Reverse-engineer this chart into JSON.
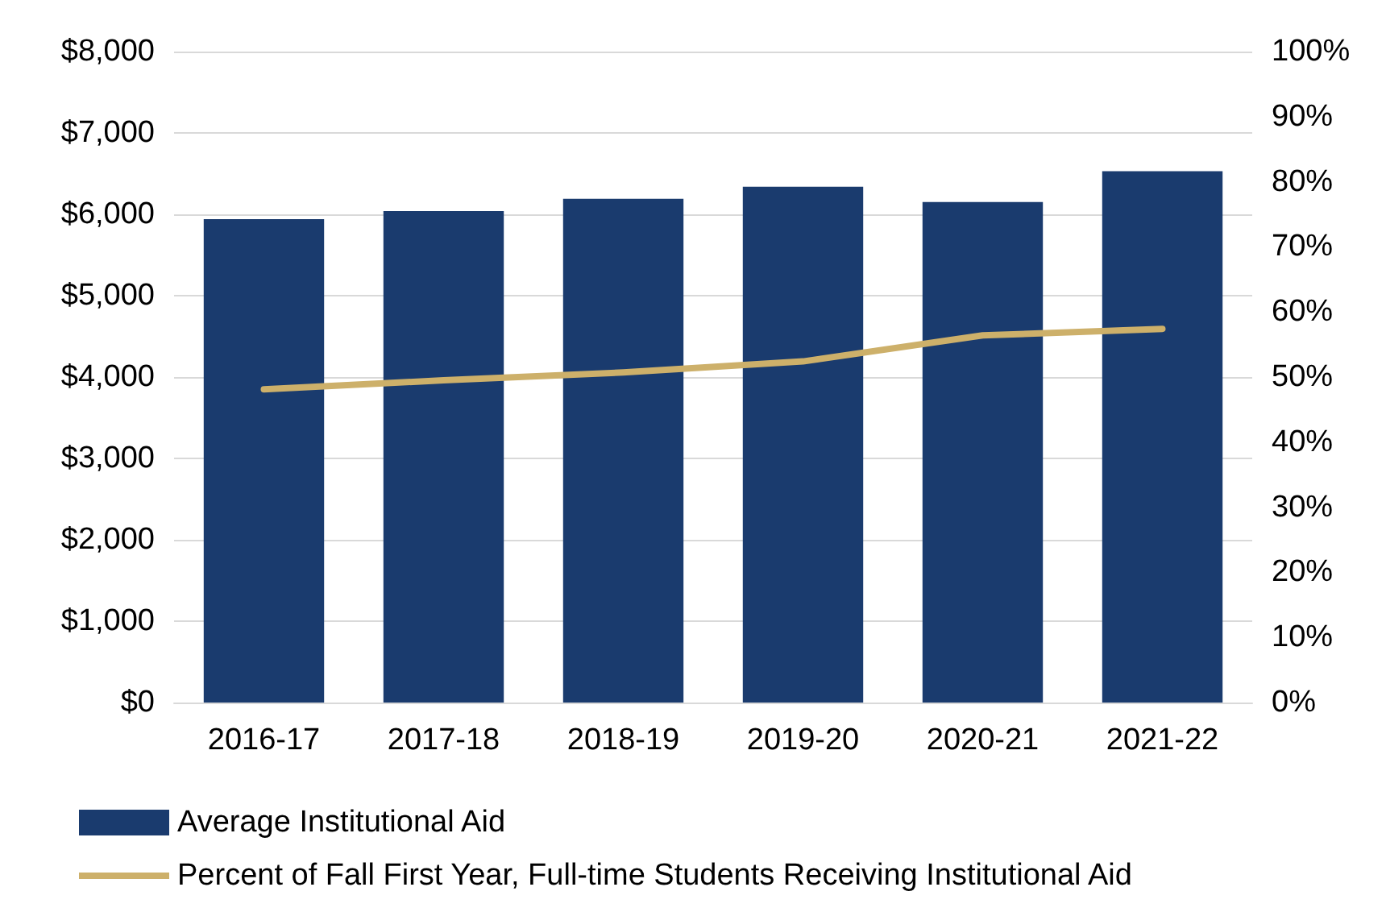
{
  "chart_data": {
    "type": "bar",
    "categories": [
      "2016-17",
      "2017-18",
      "2018-19",
      "2019-20",
      "2020-21",
      "2021-22"
    ],
    "series": [
      {
        "name": "Average Institutional Aid",
        "color": "#1a3b6e",
        "values": [
          5940,
          6040,
          6190,
          6340,
          6150,
          6530
        ]
      },
      {
        "name": "Percent of Fall First Year, Full-time Students Receiving Institutional Aid",
        "type": "line",
        "axis": "y2",
        "color": "#cdb06a",
        "values": [
          48.1,
          49.5,
          50.7,
          52.4,
          56.4,
          57.4
        ]
      }
    ],
    "ylim": [
      0,
      8000
    ],
    "yticks": [
      {
        "value": 0,
        "label": "$0"
      },
      {
        "value": 1000,
        "label": "$1,000"
      },
      {
        "value": 2000,
        "label": "$2,000"
      },
      {
        "value": 3000,
        "label": "$3,000"
      },
      {
        "value": 4000,
        "label": "$4,000"
      },
      {
        "value": 5000,
        "label": "$5,000"
      },
      {
        "value": 6000,
        "label": "$6,000"
      },
      {
        "value": 7000,
        "label": "$7,000"
      },
      {
        "value": 8000,
        "label": "$8,000"
      }
    ],
    "y2lim": [
      0,
      100
    ],
    "y2ticks": [
      {
        "value": 0,
        "label": "0%"
      },
      {
        "value": 10,
        "label": "10%"
      },
      {
        "value": 20,
        "label": "20%"
      },
      {
        "value": 30,
        "label": "30%"
      },
      {
        "value": 40,
        "label": "40%"
      },
      {
        "value": 50,
        "label": "50%"
      },
      {
        "value": 60,
        "label": "60%"
      },
      {
        "value": 70,
        "label": "70%"
      },
      {
        "value": 80,
        "label": "80%"
      },
      {
        "value": 90,
        "label": "90%"
      },
      {
        "value": 100,
        "label": "100%"
      }
    ],
    "grid": "y",
    "legend": "bottom",
    "marker": "none",
    "line_style": "solid"
  }
}
